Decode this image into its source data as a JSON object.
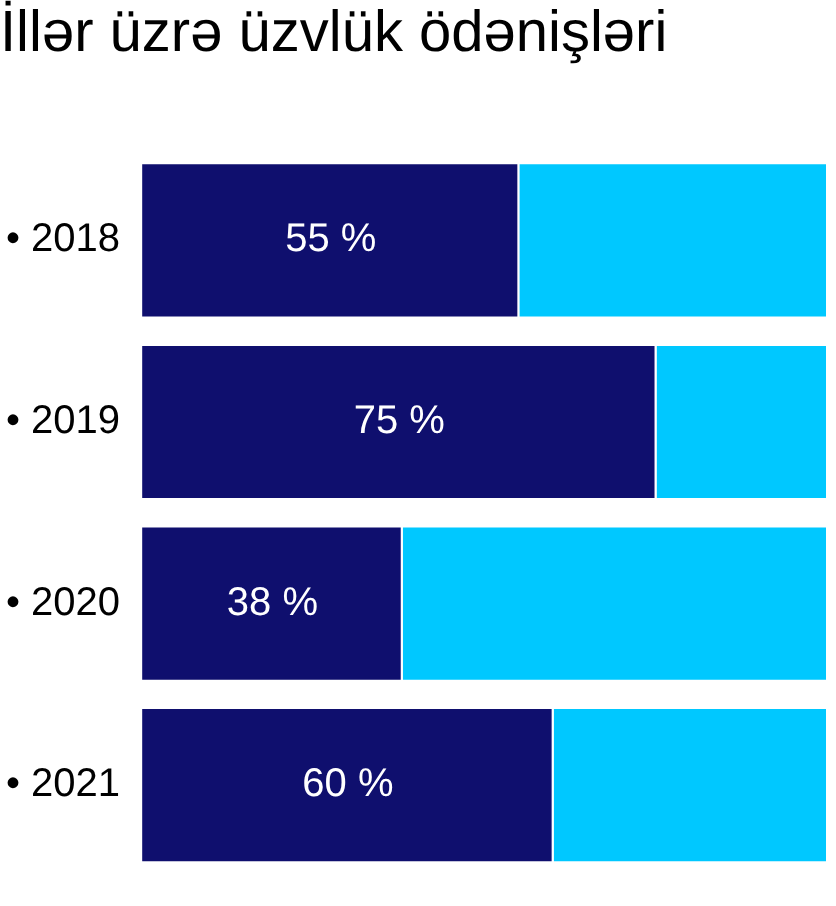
{
  "chart_data": {
    "type": "bar",
    "orientation": "horizontal",
    "stacked": true,
    "title": "İllər üzrə üzvlük ödənişləri",
    "categories": [
      "• 2018",
      "• 2019",
      "• 2020",
      "• 2021"
    ],
    "xlim": [
      0,
      100
    ],
    "tick_labels": "y",
    "legend": false,
    "series": [
      {
        "color": "#0f0f6e",
        "values": [
          55,
          75,
          38,
          60
        ],
        "value_labels": [
          "55 %",
          "75 %",
          "38 %",
          "60 %"
        ]
      },
      {
        "color": "#00c8ff",
        "values": [
          45,
          25,
          62,
          40
        ]
      }
    ]
  }
}
